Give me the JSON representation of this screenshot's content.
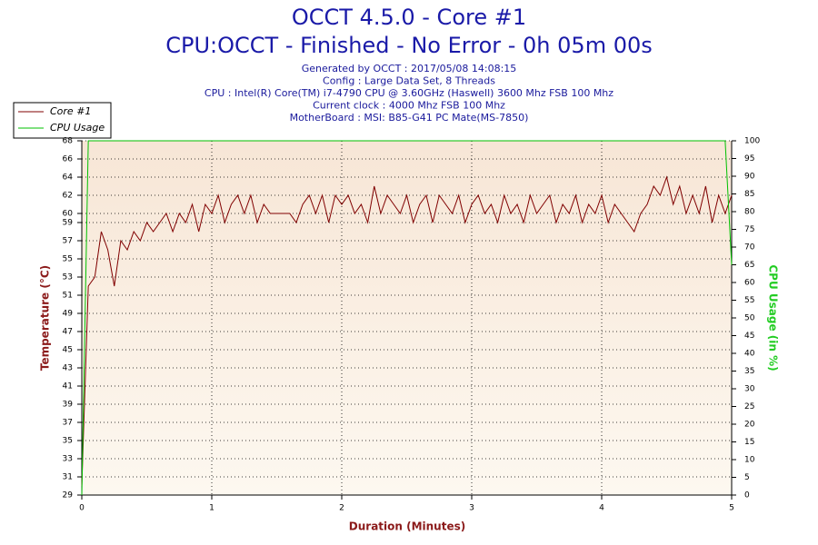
{
  "chart_data": {
    "type": "line",
    "title": "OCCT 4.5.0 - Core #1",
    "subtitle": "CPU:OCCT - Finished - No Error - 0h 05m 00s",
    "info_lines": [
      "Generated by OCCT : 2017/05/08 14:08:15",
      "Config : Large Data Set, 8 Threads",
      "CPU : Intel(R) Core(TM) i7-4790 CPU @ 3.60GHz (Haswell) 3600 Mhz FSB 100 Mhz",
      "Current clock : 4000 Mhz FSB 100 Mhz",
      "MotherBoard : MSI: B85-G41 PC Mate(MS-7850)"
    ],
    "x_label": "Duration (Minutes)",
    "y_label": "Temperature (°C)",
    "y2_label": "CPU Usage (in %)",
    "x": [
      0,
      0.05,
      0.1,
      0.15,
      0.2,
      0.25,
      0.3,
      0.35,
      0.4,
      0.45,
      0.5,
      0.55,
      0.6,
      0.65,
      0.7,
      0.75,
      0.8,
      0.85,
      0.9,
      0.95,
      1,
      1.05,
      1.1,
      1.15,
      1.2,
      1.25,
      1.3,
      1.35,
      1.4,
      1.45,
      1.5,
      1.55,
      1.6,
      1.65,
      1.7,
      1.75,
      1.8,
      1.85,
      1.9,
      1.95,
      2,
      2.05,
      2.1,
      2.15,
      2.2,
      2.25,
      2.3,
      2.35,
      2.4,
      2.45,
      2.5,
      2.55,
      2.6,
      2.65,
      2.7,
      2.75,
      2.8,
      2.85,
      2.9,
      2.95,
      3,
      3.05,
      3.1,
      3.15,
      3.2,
      3.25,
      3.3,
      3.35,
      3.4,
      3.45,
      3.5,
      3.55,
      3.6,
      3.65,
      3.7,
      3.75,
      3.8,
      3.85,
      3.9,
      3.95,
      4,
      4.05,
      4.1,
      4.15,
      4.2,
      4.25,
      4.3,
      4.35,
      4.4,
      4.45,
      4.5,
      4.55,
      4.6,
      4.65,
      4.7,
      4.75,
      4.8,
      4.85,
      4.9,
      4.95,
      5
    ],
    "series": [
      {
        "name": "Core #1",
        "color": "#800000",
        "values": [
          30,
          52,
          53,
          58,
          56,
          52,
          57,
          56,
          58,
          57,
          59,
          58,
          59,
          60,
          58,
          60,
          59,
          61,
          58,
          61,
          60,
          62,
          59,
          61,
          62,
          60,
          62,
          59,
          61,
          60,
          60,
          60,
          60,
          59,
          61,
          62,
          60,
          62,
          59,
          62,
          61,
          62,
          60,
          61,
          59,
          63,
          60,
          62,
          61,
          60,
          62,
          59,
          61,
          62,
          59,
          62,
          61,
          60,
          62,
          59,
          61,
          62,
          60,
          61,
          59,
          62,
          60,
          61,
          59,
          62,
          60,
          61,
          62,
          59,
          61,
          60,
          62,
          59,
          61,
          60,
          62,
          59,
          61,
          60,
          59,
          58,
          60,
          61,
          63,
          62,
          64,
          61,
          63,
          60,
          62,
          60,
          63,
          59,
          62,
          60,
          62
        ]
      },
      {
        "name": "CPU Usage",
        "color": "#00c000",
        "axis": "y2",
        "values": [
          0,
          100,
          100,
          100,
          100,
          100,
          100,
          100,
          100,
          100,
          100,
          100,
          100,
          100,
          100,
          100,
          100,
          100,
          100,
          100,
          100,
          100,
          100,
          100,
          100,
          100,
          100,
          100,
          100,
          100,
          100,
          100,
          100,
          100,
          100,
          100,
          100,
          100,
          100,
          100,
          100,
          100,
          100,
          100,
          100,
          100,
          100,
          100,
          100,
          100,
          100,
          100,
          100,
          100,
          100,
          100,
          100,
          100,
          100,
          100,
          100,
          100,
          100,
          100,
          100,
          100,
          100,
          100,
          100,
          100,
          100,
          100,
          100,
          100,
          100,
          100,
          100,
          100,
          100,
          100,
          100,
          100,
          100,
          100,
          100,
          100,
          100,
          100,
          100,
          100,
          100,
          100,
          100,
          100,
          100,
          100,
          100,
          100,
          100,
          100,
          65
        ]
      }
    ],
    "xlim": [
      0,
      5
    ],
    "xticks": [
      0,
      1,
      2,
      3,
      4,
      5
    ],
    "ylim": [
      29,
      68
    ],
    "yticks": [
      29,
      31,
      33,
      35,
      37,
      39,
      41,
      43,
      45,
      47,
      49,
      51,
      53,
      55,
      57,
      59,
      60,
      62,
      64,
      66,
      68
    ],
    "y2lim": [
      0,
      100
    ],
    "y2ticks": [
      0,
      5,
      10,
      15,
      20,
      25,
      30,
      35,
      40,
      45,
      50,
      55,
      60,
      65,
      70,
      75,
      80,
      85,
      90,
      95,
      100
    ],
    "grid": true,
    "legend": "top-left"
  }
}
